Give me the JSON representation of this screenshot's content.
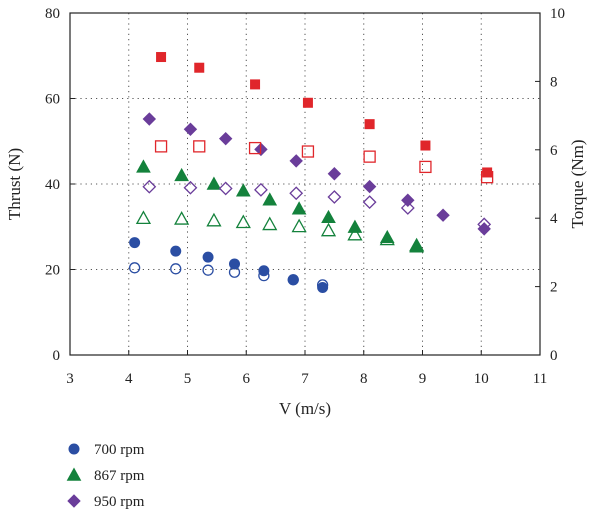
{
  "chart_data": {
    "type": "scatter",
    "xlabel": "V (m/s)",
    "ylabel": "Thrust (N)",
    "y2label": "Torque (Nm)",
    "xlim": [
      3,
      11
    ],
    "ylim": [
      0,
      80
    ],
    "y2lim": [
      0,
      10
    ],
    "xticks": [
      "3",
      "4",
      "5",
      "6",
      "7",
      "8",
      "9",
      "10",
      "11"
    ],
    "yticks": [
      "0",
      "20",
      "40",
      "60",
      "80"
    ],
    "y2ticks": [
      "0",
      "2",
      "4",
      "6",
      "8",
      "10"
    ],
    "grid": "dotted",
    "legend_position": "bottom-left",
    "legend": [
      "700 rpm",
      "867 rpm",
      "950 rpm"
    ],
    "series": [
      {
        "name": "700 rpm",
        "marker": "circle",
        "color": "#2b4ea3",
        "filled": true,
        "axis": "left",
        "points": [
          [
            4.1,
            26.3
          ],
          [
            4.8,
            24.3
          ],
          [
            5.35,
            22.9
          ],
          [
            5.8,
            21.3
          ],
          [
            6.3,
            19.7
          ],
          [
            6.8,
            17.6
          ],
          [
            7.3,
            15.8
          ]
        ]
      },
      {
        "name": "700 rpm",
        "marker": "circle",
        "color": "#2b4ea3",
        "filled": false,
        "axis": "right",
        "points": [
          [
            4.1,
            2.55
          ],
          [
            4.8,
            2.52
          ],
          [
            5.35,
            2.48
          ],
          [
            5.8,
            2.42
          ],
          [
            6.3,
            2.32
          ],
          [
            6.8,
            2.2
          ],
          [
            7.3,
            2.05
          ]
        ]
      },
      {
        "name": "867 rpm",
        "marker": "triangle",
        "color": "#14823c",
        "filled": true,
        "axis": "left",
        "points": [
          [
            4.25,
            44
          ],
          [
            4.9,
            42
          ],
          [
            5.45,
            40
          ],
          [
            5.95,
            38.4
          ],
          [
            6.4,
            36.3
          ],
          [
            6.9,
            34.2
          ],
          [
            7.4,
            32.2
          ],
          [
            7.85,
            29.9
          ],
          [
            8.4,
            27.5
          ],
          [
            8.9,
            25.3
          ]
        ]
      },
      {
        "name": "867 rpm",
        "marker": "triangle",
        "color": "#14823c",
        "filled": false,
        "axis": "right",
        "points": [
          [
            4.25,
            4.0
          ],
          [
            4.9,
            3.98
          ],
          [
            5.45,
            3.93
          ],
          [
            5.95,
            3.88
          ],
          [
            6.4,
            3.82
          ],
          [
            6.9,
            3.76
          ],
          [
            7.4,
            3.64
          ],
          [
            7.85,
            3.52
          ],
          [
            8.4,
            3.38
          ],
          [
            8.9,
            3.2
          ]
        ]
      },
      {
        "name": "950 rpm",
        "marker": "diamond",
        "color": "#6a3d9a",
        "filled": true,
        "axis": "left",
        "points": [
          [
            4.35,
            55.2
          ],
          [
            5.05,
            52.8
          ],
          [
            5.65,
            50.6
          ],
          [
            6.25,
            48.1
          ],
          [
            6.85,
            45.4
          ],
          [
            7.5,
            42.4
          ],
          [
            8.1,
            39.4
          ],
          [
            8.75,
            36.2
          ],
          [
            9.35,
            32.7
          ],
          [
            10.05,
            29.5
          ]
        ]
      },
      {
        "name": "950 rpm",
        "marker": "diamond",
        "color": "#6a3d9a",
        "filled": false,
        "axis": "right",
        "points": [
          [
            4.35,
            4.92
          ],
          [
            5.05,
            4.89
          ],
          [
            5.65,
            4.87
          ],
          [
            6.25,
            4.83
          ],
          [
            6.85,
            4.73
          ],
          [
            7.5,
            4.62
          ],
          [
            8.1,
            4.47
          ],
          [
            8.75,
            4.3
          ],
          [
            10.05,
            3.82
          ]
        ]
      },
      {
        "name": "",
        "marker": "square",
        "color": "#e0262b",
        "filled": true,
        "axis": "left",
        "points": [
          [
            4.55,
            69.7
          ],
          [
            5.2,
            67.2
          ],
          [
            6.15,
            63.3
          ],
          [
            7.05,
            59
          ],
          [
            8.1,
            54
          ],
          [
            9.05,
            49
          ],
          [
            10.1,
            42.7
          ]
        ]
      },
      {
        "name": "",
        "marker": "square",
        "color": "#e0262b",
        "filled": false,
        "axis": "right",
        "points": [
          [
            4.55,
            6.1
          ],
          [
            5.2,
            6.1
          ],
          [
            6.15,
            6.05
          ],
          [
            7.05,
            5.95
          ],
          [
            8.1,
            5.8
          ],
          [
            9.05,
            5.5
          ],
          [
            10.1,
            5.2
          ]
        ]
      }
    ]
  }
}
